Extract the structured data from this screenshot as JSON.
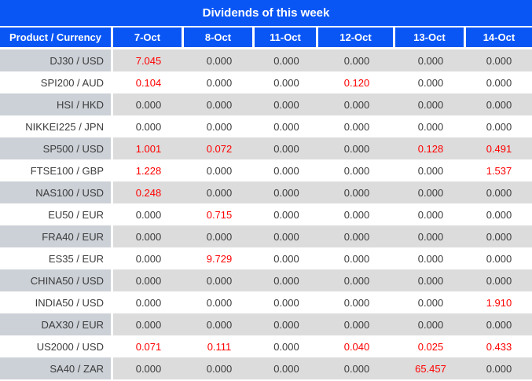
{
  "chart_data": {
    "type": "table",
    "title": "Dividends of this week",
    "columns": [
      "Product / Currency",
      "7-Oct",
      "8-Oct",
      "11-Oct",
      "12-Oct",
      "13-Oct",
      "14-Oct"
    ],
    "rows": [
      {
        "product": "DJ30 / USD",
        "values": [
          "7.045",
          "0.000",
          "0.000",
          "0.000",
          "0.000",
          "0.000"
        ]
      },
      {
        "product": "SPI200 / AUD",
        "values": [
          "0.104",
          "0.000",
          "0.000",
          "0.120",
          "0.000",
          "0.000"
        ]
      },
      {
        "product": "HSI / HKD",
        "values": [
          "0.000",
          "0.000",
          "0.000",
          "0.000",
          "0.000",
          "0.000"
        ]
      },
      {
        "product": "NIKKEI225 / JPN",
        "values": [
          "0.000",
          "0.000",
          "0.000",
          "0.000",
          "0.000",
          "0.000"
        ]
      },
      {
        "product": "SP500 / USD",
        "values": [
          "1.001",
          "0.072",
          "0.000",
          "0.000",
          "0.128",
          "0.491"
        ]
      },
      {
        "product": "FTSE100 / GBP",
        "values": [
          "1.228",
          "0.000",
          "0.000",
          "0.000",
          "0.000",
          "1.537"
        ]
      },
      {
        "product": "NAS100 / USD",
        "values": [
          "0.248",
          "0.000",
          "0.000",
          "0.000",
          "0.000",
          "0.000"
        ]
      },
      {
        "product": "EU50 / EUR",
        "values": [
          "0.000",
          "0.715",
          "0.000",
          "0.000",
          "0.000",
          "0.000"
        ]
      },
      {
        "product": "FRA40 / EUR",
        "values": [
          "0.000",
          "0.000",
          "0.000",
          "0.000",
          "0.000",
          "0.000"
        ]
      },
      {
        "product": "ES35 / EUR",
        "values": [
          "0.000",
          "9.729",
          "0.000",
          "0.000",
          "0.000",
          "0.000"
        ]
      },
      {
        "product": "CHINA50 / USD",
        "values": [
          "0.000",
          "0.000",
          "0.000",
          "0.000",
          "0.000",
          "0.000"
        ]
      },
      {
        "product": "INDIA50 / USD",
        "values": [
          "0.000",
          "0.000",
          "0.000",
          "0.000",
          "0.000",
          "1.910"
        ]
      },
      {
        "product": "DAX30 / EUR",
        "values": [
          "0.000",
          "0.000",
          "0.000",
          "0.000",
          "0.000",
          "0.000"
        ]
      },
      {
        "product": "US2000 / USD",
        "values": [
          "0.071",
          "0.111",
          "0.000",
          "0.040",
          "0.025",
          "0.433"
        ]
      },
      {
        "product": "SA40 / ZAR",
        "values": [
          "0.000",
          "0.000",
          "0.000",
          "0.000",
          "65.457",
          "0.000"
        ]
      }
    ],
    "layout_hints": {
      "first_row_stripe": "gray",
      "stripe_pattern": "alternating",
      "nonzero_values_highlighted": true
    }
  },
  "colors": {
    "header_blue": "#0a56f5",
    "header_text": "#ffffff",
    "row_gray": "#dcdcdc",
    "label_gray": "#ccd1d7",
    "zero_text": "#3b3b3b",
    "nonzero_text": "#ff0000"
  }
}
